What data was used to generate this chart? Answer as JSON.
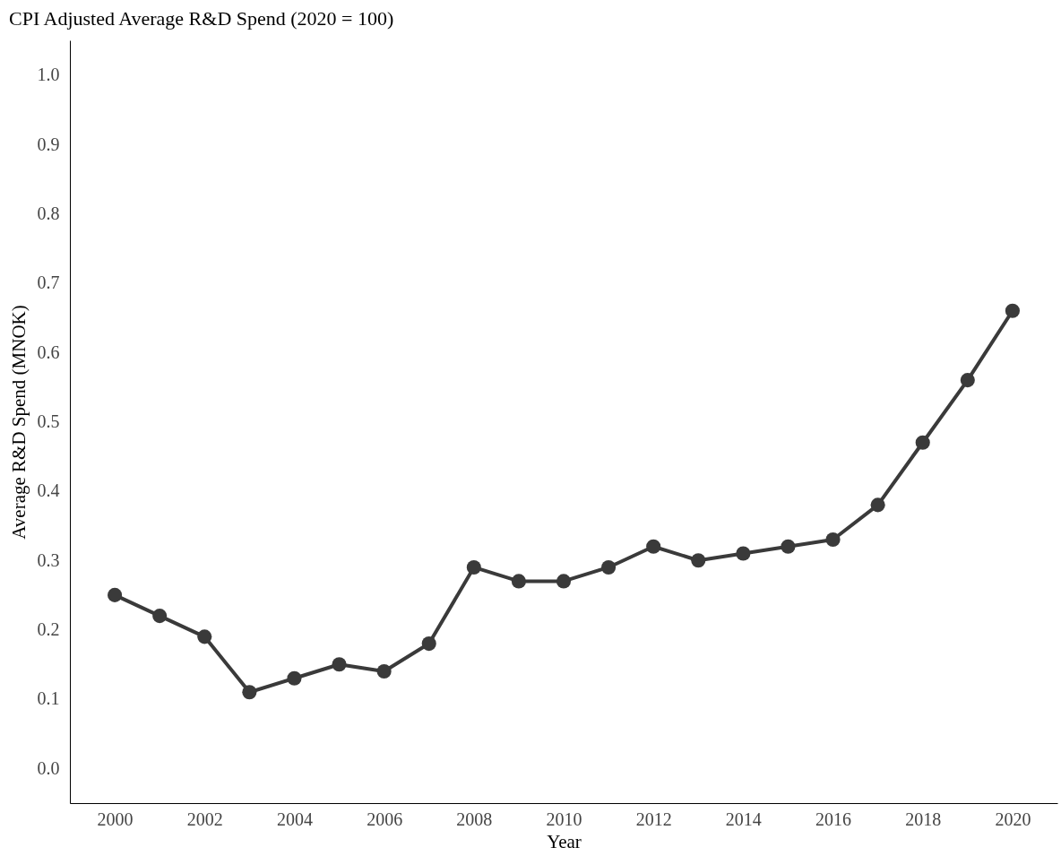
{
  "chart_data": {
    "type": "line",
    "title": "CPI Adjusted Average R&D Spend (2020 = 100)",
    "xlabel": "Year",
    "ylabel": "Average R&D Spend (MNOK)",
    "x": [
      2000,
      2001,
      2002,
      2003,
      2004,
      2005,
      2006,
      2007,
      2008,
      2009,
      2010,
      2011,
      2012,
      2013,
      2014,
      2015,
      2016,
      2017,
      2018,
      2019,
      2020
    ],
    "series": [
      {
        "color": "#3a3a3a",
        "values": [
          0.25,
          0.22,
          0.19,
          0.11,
          0.13,
          0.15,
          0.14,
          0.18,
          0.29,
          0.27,
          0.27,
          0.29,
          0.32,
          0.3,
          0.31,
          0.32,
          0.33,
          0.38,
          0.47,
          0.56,
          0.66
        ]
      }
    ],
    "xlim": [
      1999,
      2021
    ],
    "xticks": [
      2000,
      2002,
      2004,
      2006,
      2008,
      2010,
      2012,
      2014,
      2016,
      2018,
      2020
    ],
    "ylim": [
      -0.05,
      1.05
    ],
    "yticks": [
      {
        "value": 0,
        "label": "0.0"
      },
      0.1,
      0.2,
      0.3,
      0.4,
      0.5,
      0.6,
      0.7,
      0.8,
      0.9,
      {
        "value": 1,
        "label": "1.0"
      }
    ],
    "grid": false,
    "legend": false,
    "marker": "circle",
    "line_style": "solid"
  }
}
